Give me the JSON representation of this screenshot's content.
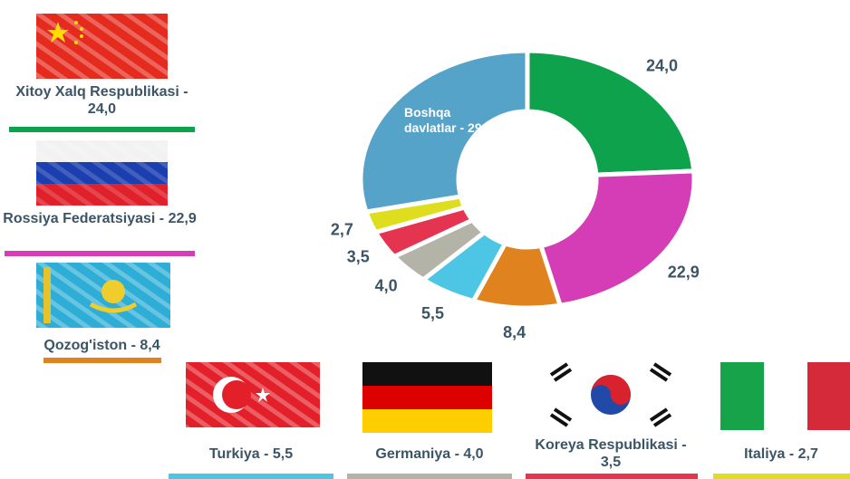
{
  "chart_data": {
    "type": "pie",
    "categories": [
      "Xitoy Xalq Respublikasi - 24,0",
      "Rossiya Federatsiyasi - 22,9",
      "Qozog'iston - 8,4",
      "Turkiya - 5,5",
      "Germaniya - 4,0",
      "Koreya Respublikasi - 3,5",
      "Italiya - 2,7",
      "Boshqa davlatlar - 29,1"
    ],
    "values": [
      24.0,
      22.9,
      8.4,
      5.5,
      4.0,
      3.5,
      2.7,
      29.1
    ],
    "value_labels": [
      "24,0",
      "22,9",
      "8,4",
      "5,5",
      "4,0",
      "3,5",
      "2,7",
      null
    ],
    "colors": [
      "#0fa24c",
      "#d43db5",
      "#e0821e",
      "#4dc6e6",
      "#b3b3a8",
      "#e4344f",
      "#dede1e",
      "#56a3c9"
    ],
    "donut": true
  }
}
